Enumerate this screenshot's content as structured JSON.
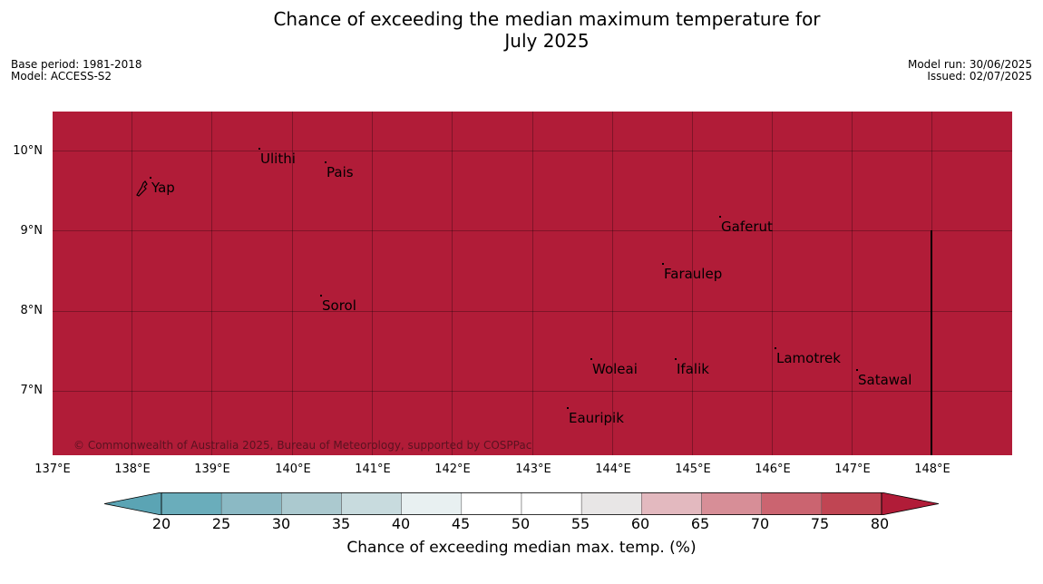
{
  "title_line1": "Chance of exceeding the median maximum temperature for",
  "title_line2": "July 2025",
  "meta": {
    "base_period": "Base period: 1981-2018",
    "model": "Model: ACCESS-S2",
    "model_run": "Model run: 30/06/2025",
    "issued": "Issued: 02/07/2025"
  },
  "map": {
    "fill_color": "#b11c38",
    "longitudes": [
      "137°E",
      "138°E",
      "139°E",
      "140°E",
      "141°E",
      "142°E",
      "143°E",
      "144°E",
      "145°E",
      "146°E",
      "147°E",
      "148°E"
    ],
    "latitudes": [
      "10°N",
      "9°N",
      "8°N",
      "7°N"
    ],
    "islands": {
      "yap": "Yap",
      "ulithi": "Ulithi",
      "pais": "Pais",
      "gaferut": "Gaferut",
      "faraulep": "Faraulep",
      "sorol": "Sorol",
      "lamotrek": "Lamotrek",
      "satawal": "Satawal",
      "woleai": "Woleai",
      "ifalik": "Ifalik",
      "eauripik": "Eauripik"
    },
    "copyright": "© Commonwealth of Australia 2025, Bureau of Meteorology, supported by COSPPac"
  },
  "colorbar": {
    "ticks": [
      "20",
      "25",
      "30",
      "35",
      "40",
      "45",
      "50",
      "55",
      "60",
      "65",
      "70",
      "75",
      "80"
    ],
    "colors": [
      "#5ba4b4",
      "#6aadbb",
      "#8bb9c4",
      "#abc9cf",
      "#c8dbde",
      "#e8f0f1",
      "#ffffff",
      "#ffffff",
      "#e8e6e6",
      "#e3b9bf",
      "#d78e97",
      "#cb6470",
      "#c04553",
      "#b11c38"
    ],
    "label": "Chance of exceeding median max. temp. (%)"
  }
}
